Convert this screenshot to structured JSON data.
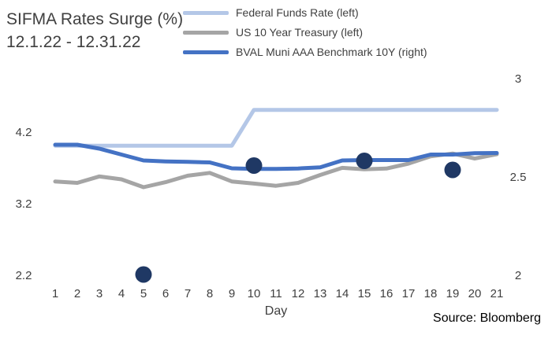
{
  "title_line1": "SIFMA Rates Surge (%)",
  "title_line2": "12.1.22 - 12.31.22",
  "source": "Source: Bloomberg",
  "colors": {
    "federal_funds": "#b4c7e7",
    "treasury": "#a5a5a5",
    "bval": "#4472c4",
    "markers": "#1f3864",
    "axis_text": "#404040"
  },
  "legend": [
    {
      "label": "Federal Funds Rate (left)",
      "color": "#b4c7e7"
    },
    {
      "label": "US 10 Year Treasury (left)",
      "color": "#a5a5a5"
    },
    {
      "label": "BVAL Muni AAA Benchmark 10Y (right)",
      "color": "#4472c4"
    }
  ],
  "chart_data": {
    "type": "line",
    "xlabel": "Day",
    "x": [
      1,
      2,
      3,
      4,
      5,
      6,
      7,
      8,
      9,
      10,
      11,
      12,
      13,
      14,
      15,
      16,
      17,
      18,
      19,
      20,
      21
    ],
    "y_left_ticks": [
      "4.2",
      "3.2",
      "2.2"
    ],
    "y_left_tick_values": [
      4.2,
      3.2,
      2.2
    ],
    "y_left_range": [
      2.2,
      4.2
    ],
    "y_right_ticks": [
      "3",
      "2.5",
      "2"
    ],
    "y_right_tick_values": [
      3,
      2.5,
      2
    ],
    "y_right_range": [
      2,
      3
    ],
    "grid": false,
    "legend_position": "top-right",
    "series": [
      {
        "name": "Federal Funds Rate (left)",
        "axis": "left",
        "values": [
          4.0,
          4.0,
          4.0,
          4.0,
          4.0,
          4.0,
          4.0,
          4.0,
          4.0,
          4.5,
          4.5,
          4.5,
          4.5,
          4.5,
          4.5,
          4.5,
          4.5,
          4.5,
          4.5,
          4.5,
          4.5
        ]
      },
      {
        "name": "US 10 Year Treasury (left)",
        "axis": "left",
        "values": [
          3.5,
          3.48,
          3.57,
          3.53,
          3.42,
          3.49,
          3.58,
          3.62,
          3.5,
          3.47,
          3.44,
          3.48,
          3.59,
          3.69,
          3.67,
          3.68,
          3.75,
          3.85,
          3.89,
          3.82,
          3.88
        ]
      },
      {
        "name": "BVAL Muni AAA Benchmark 10Y (right)",
        "axis": "right",
        "values": [
          2.66,
          2.66,
          2.64,
          2.61,
          2.58,
          2.575,
          2.573,
          2.57,
          2.54,
          2.537,
          2.537,
          2.539,
          2.545,
          2.58,
          2.582,
          2.582,
          2.582,
          2.61,
          2.61,
          2.617,
          2.618
        ]
      }
    ],
    "markers": {
      "axis": "right",
      "points": [
        {
          "x": 5,
          "y": 2.0
        },
        {
          "x": 10,
          "y": 2.554
        },
        {
          "x": 15,
          "y": 2.578
        },
        {
          "x": 19,
          "y": 2.532
        }
      ]
    }
  }
}
